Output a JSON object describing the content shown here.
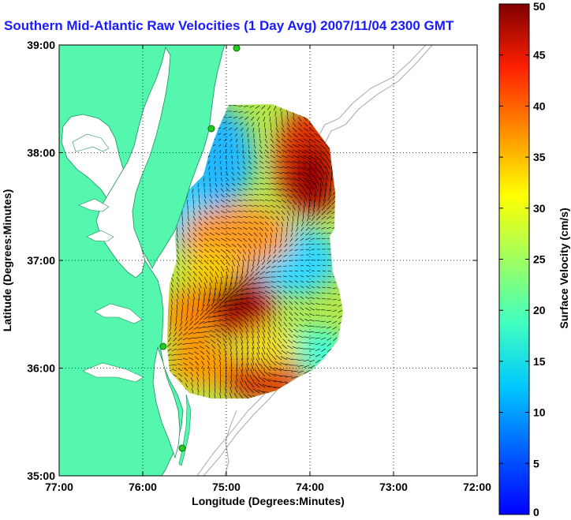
{
  "chart_data": {
    "type": "heatmap",
    "title": "Southern Mid-Atlantic Raw Velocities (1 Day Avg) 2007/11/04 2300 GMT",
    "xlabel": "Longitude (Degrees:Minutes)",
    "ylabel": "Latitude (Degrees:Minutes)",
    "colorbar_label": "Surface Velocity (cm/s)",
    "xlim": [
      -77,
      -72
    ],
    "ylim": [
      35,
      39
    ],
    "x_ticks": [
      "77:00",
      "76:00",
      "75:00",
      "74:00",
      "73:00",
      "72:00"
    ],
    "y_ticks": [
      "35:00",
      "36:00",
      "37:00",
      "38:00",
      "39:00"
    ],
    "colorbar_range": [
      0,
      50
    ],
    "colorbar_ticks": [
      "0",
      "5",
      "10",
      "15",
      "20",
      "25",
      "30",
      "35",
      "40",
      "45",
      "50"
    ],
    "grid": true,
    "colormap": "jet",
    "colors": {
      "land": "#55f7ae",
      "water": "#ffffff",
      "title": "#1a1aff",
      "contour": "#a0a0a0",
      "site": "#22cc22"
    },
    "features": [
      {
        "name": "high-speed-core",
        "lon": -73.9,
        "lat": 37.85,
        "value": 48
      },
      {
        "name": "high-speed-core",
        "lon": -74.9,
        "lat": 36.65,
        "value": 46
      },
      {
        "name": "high-speed-core",
        "lon": -74.5,
        "lat": 35.9,
        "value": 44
      },
      {
        "name": "low-speed-zone",
        "lon": -75.1,
        "lat": 38.05,
        "value": 8
      },
      {
        "name": "low-speed-zone",
        "lon": -74.0,
        "lat": 36.95,
        "value": 9
      }
    ]
  }
}
